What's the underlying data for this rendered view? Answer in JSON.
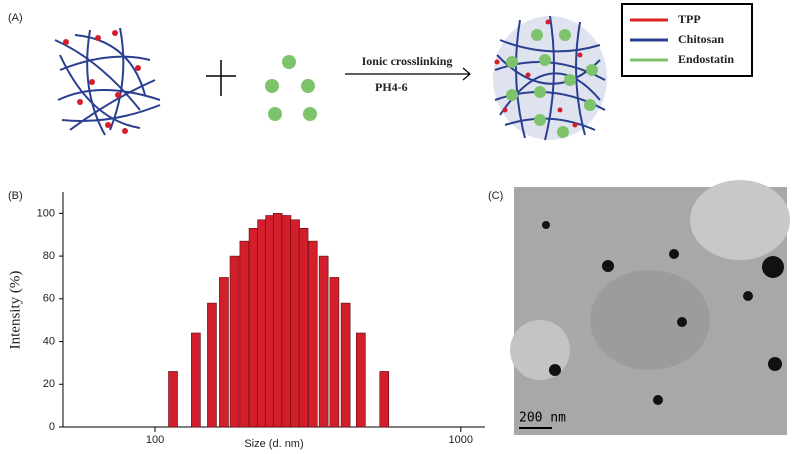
{
  "panel_a": {
    "label": "(A)",
    "arrow_top": "Ionic crosslinking",
    "arrow_bottom": "PH4-6",
    "legend": [
      "TPP",
      "Chitosan",
      "Endostatin"
    ]
  },
  "panel_b": {
    "label": "(B)"
  },
  "panel_c": {
    "label": "(C)",
    "scale_bar": "200 nm"
  },
  "chart_data": {
    "type": "bar",
    "xlabel": "Size (d. nm)",
    "ylabel": "Intensity (%)",
    "x": [
      114.5,
      136,
      153.5,
      168,
      182,
      196,
      210,
      224,
      238,
      252,
      269,
      287,
      306,
      328,
      356,
      386,
      420,
      471,
      562
    ],
    "values": [
      26,
      44,
      58,
      70,
      80,
      87,
      93,
      97,
      99,
      100,
      99,
      97,
      93,
      87,
      80,
      70,
      58,
      44,
      26
    ],
    "color": "#d21f2b",
    "xscale": "log",
    "xlim": [
      50,
      1200
    ],
    "xticks": [
      100,
      1000
    ],
    "ylim": [
      0,
      110
    ],
    "yticks": [
      0,
      20,
      40,
      60,
      80,
      100
    ]
  }
}
